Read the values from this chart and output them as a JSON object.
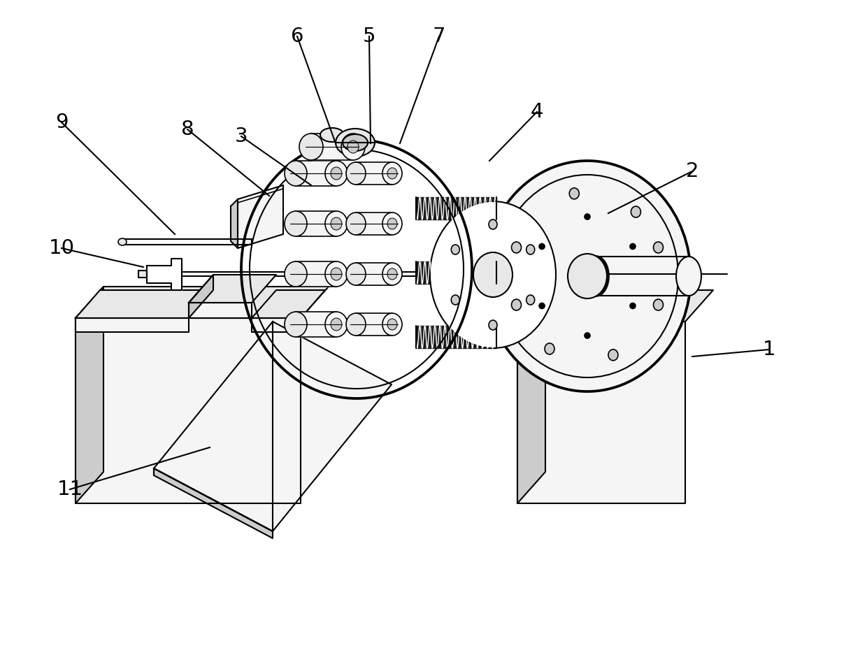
{
  "background_color": "#ffffff",
  "line_color": "#000000",
  "lw": 1.5,
  "figsize": [
    12.4,
    9.47
  ],
  "dpi": 100,
  "annotations": [
    [
      "1",
      1100,
      500,
      990,
      510
    ],
    [
      "2",
      990,
      245,
      870,
      305
    ],
    [
      "3",
      345,
      195,
      445,
      265
    ],
    [
      "4",
      768,
      160,
      700,
      230
    ],
    [
      "5",
      528,
      52,
      530,
      205
    ],
    [
      "6",
      425,
      52,
      480,
      205
    ],
    [
      "7",
      628,
      52,
      572,
      205
    ],
    [
      "8",
      268,
      185,
      385,
      280
    ],
    [
      "9",
      88,
      175,
      250,
      335
    ],
    [
      "10",
      88,
      355,
      205,
      382
    ],
    [
      "11",
      100,
      700,
      300,
      640
    ]
  ]
}
